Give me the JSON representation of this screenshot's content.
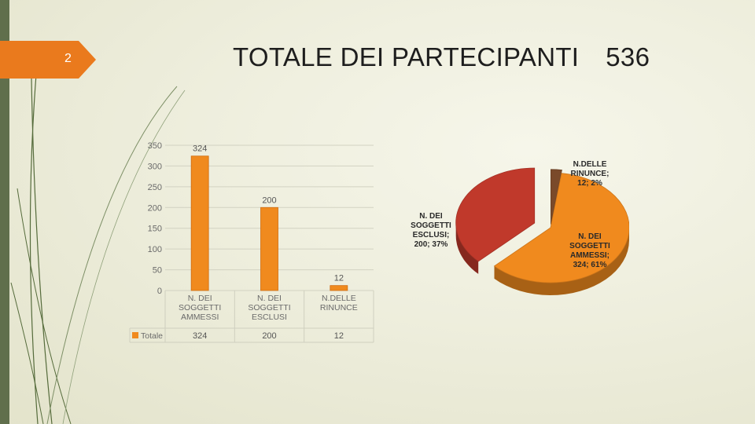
{
  "slide": {
    "page_number": "2",
    "title": "TOTALE DEI PARTECIPANTI",
    "title_value": "536"
  },
  "colors": {
    "accent_orange": "#ea7a1d",
    "bar_orange": "#f08a1e",
    "pie_red": "#c0392b",
    "pie_brown": "#7a4a2a",
    "side_green": "#606f4c"
  },
  "chart_data": [
    {
      "type": "bar",
      "categories": [
        "N. DEI SOGGETTI AMMESSI",
        "N. DEI SOGGETTI ESCLUSI",
        "N.DELLE RINUNCE"
      ],
      "category_label_lines": [
        [
          "N. DEI",
          "SOGGETTI",
          "AMMESSI"
        ],
        [
          "N. DEI",
          "SOGGETTI",
          "ESCLUSI"
        ],
        [
          "N.DELLE",
          "RINUNCE"
        ]
      ],
      "series": [
        {
          "name": "Totale",
          "values": [
            324,
            200,
            12
          ]
        }
      ],
      "data_labels": [
        "324",
        "200",
        "12"
      ],
      "yticks": [
        0,
        50,
        100,
        150,
        200,
        250,
        300,
        350
      ],
      "ylim": [
        0,
        350
      ],
      "grid": true,
      "data_table": true
    },
    {
      "type": "pie",
      "slices": [
        {
          "label": "N. DEI SOGGETTI AMMESSI",
          "label_lines": [
            "N. DEI",
            "SOGGETTI",
            "AMMESSI;",
            "324; 61%"
          ],
          "value": 324,
          "percent": 61,
          "color": "#f08a1e"
        },
        {
          "label": "N. DEI SOGGETTI ESCLUSI",
          "label_lines": [
            "N. DEI",
            "SOGGETTI",
            "ESCLUSI;",
            "200; 37%"
          ],
          "value": 200,
          "percent": 37,
          "color": "#c0392b"
        },
        {
          "label": "N.DELLE RINUNCE",
          "label_lines": [
            "N.DELLE",
            "RINUNCE;",
            "12; 2%"
          ],
          "value": 12,
          "percent": 2,
          "color": "#7a4a2a"
        }
      ],
      "style": "3d-exploded"
    }
  ]
}
